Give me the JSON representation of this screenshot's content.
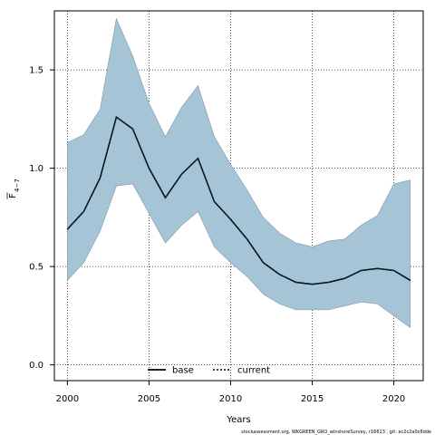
{
  "chart_data": {
    "type": "line",
    "xlabel": "Years",
    "ylabel": "F",
    "ylabel_subscript": "4−7",
    "xlim": [
      1999.2,
      2021.8
    ],
    "ylim": [
      -0.08,
      1.8
    ],
    "xticks": [
      2000,
      2005,
      2010,
      2015,
      2020
    ],
    "yticks": [
      0.0,
      0.5,
      1.0,
      1.5
    ],
    "ytick_labels": [
      "0.0",
      "0.5",
      "1.0",
      "1.5"
    ],
    "grid": true,
    "legend_position": "bottom-center",
    "x": [
      2000,
      2001,
      2002,
      2003,
      2004,
      2005,
      2006,
      2007,
      2008,
      2009,
      2010,
      2011,
      2012,
      2013,
      2014,
      2015,
      2016,
      2017,
      2018,
      2019,
      2020,
      2021
    ],
    "series": [
      {
        "name": "base",
        "style": "solid",
        "color": "#000000",
        "values": [
          0.69,
          0.78,
          0.95,
          1.26,
          1.2,
          1.0,
          0.85,
          0.97,
          1.05,
          0.83,
          0.74,
          0.64,
          0.52,
          0.46,
          0.42,
          0.41,
          0.42,
          0.44,
          0.48,
          0.49,
          0.48,
          0.43
        ]
      },
      {
        "name": "current",
        "style": "dotted",
        "color": "#0b2a4a",
        "values": [
          0.69,
          0.78,
          0.95,
          1.26,
          1.2,
          1.0,
          0.85,
          0.97,
          1.05,
          0.83,
          0.74,
          0.64,
          0.52,
          0.46,
          0.42,
          0.41,
          0.42,
          0.44,
          0.48,
          0.49,
          0.48,
          0.43
        ]
      }
    ],
    "confidence_band": {
      "color": "#a5c5d7",
      "lower": [
        0.43,
        0.52,
        0.68,
        0.91,
        0.92,
        0.77,
        0.62,
        0.71,
        0.78,
        0.6,
        0.52,
        0.45,
        0.36,
        0.31,
        0.28,
        0.28,
        0.28,
        0.3,
        0.32,
        0.31,
        0.25,
        0.19
      ],
      "upper": [
        1.13,
        1.17,
        1.3,
        1.76,
        1.57,
        1.33,
        1.16,
        1.31,
        1.42,
        1.16,
        1.02,
        0.89,
        0.75,
        0.67,
        0.62,
        0.6,
        0.63,
        0.64,
        0.71,
        0.76,
        0.92,
        0.94
      ]
    }
  },
  "footer_text": "stockassessment.org, WKGREEN_GRO_wInshoreSurvey, r16613 , git: ec2c2a0c6dde"
}
